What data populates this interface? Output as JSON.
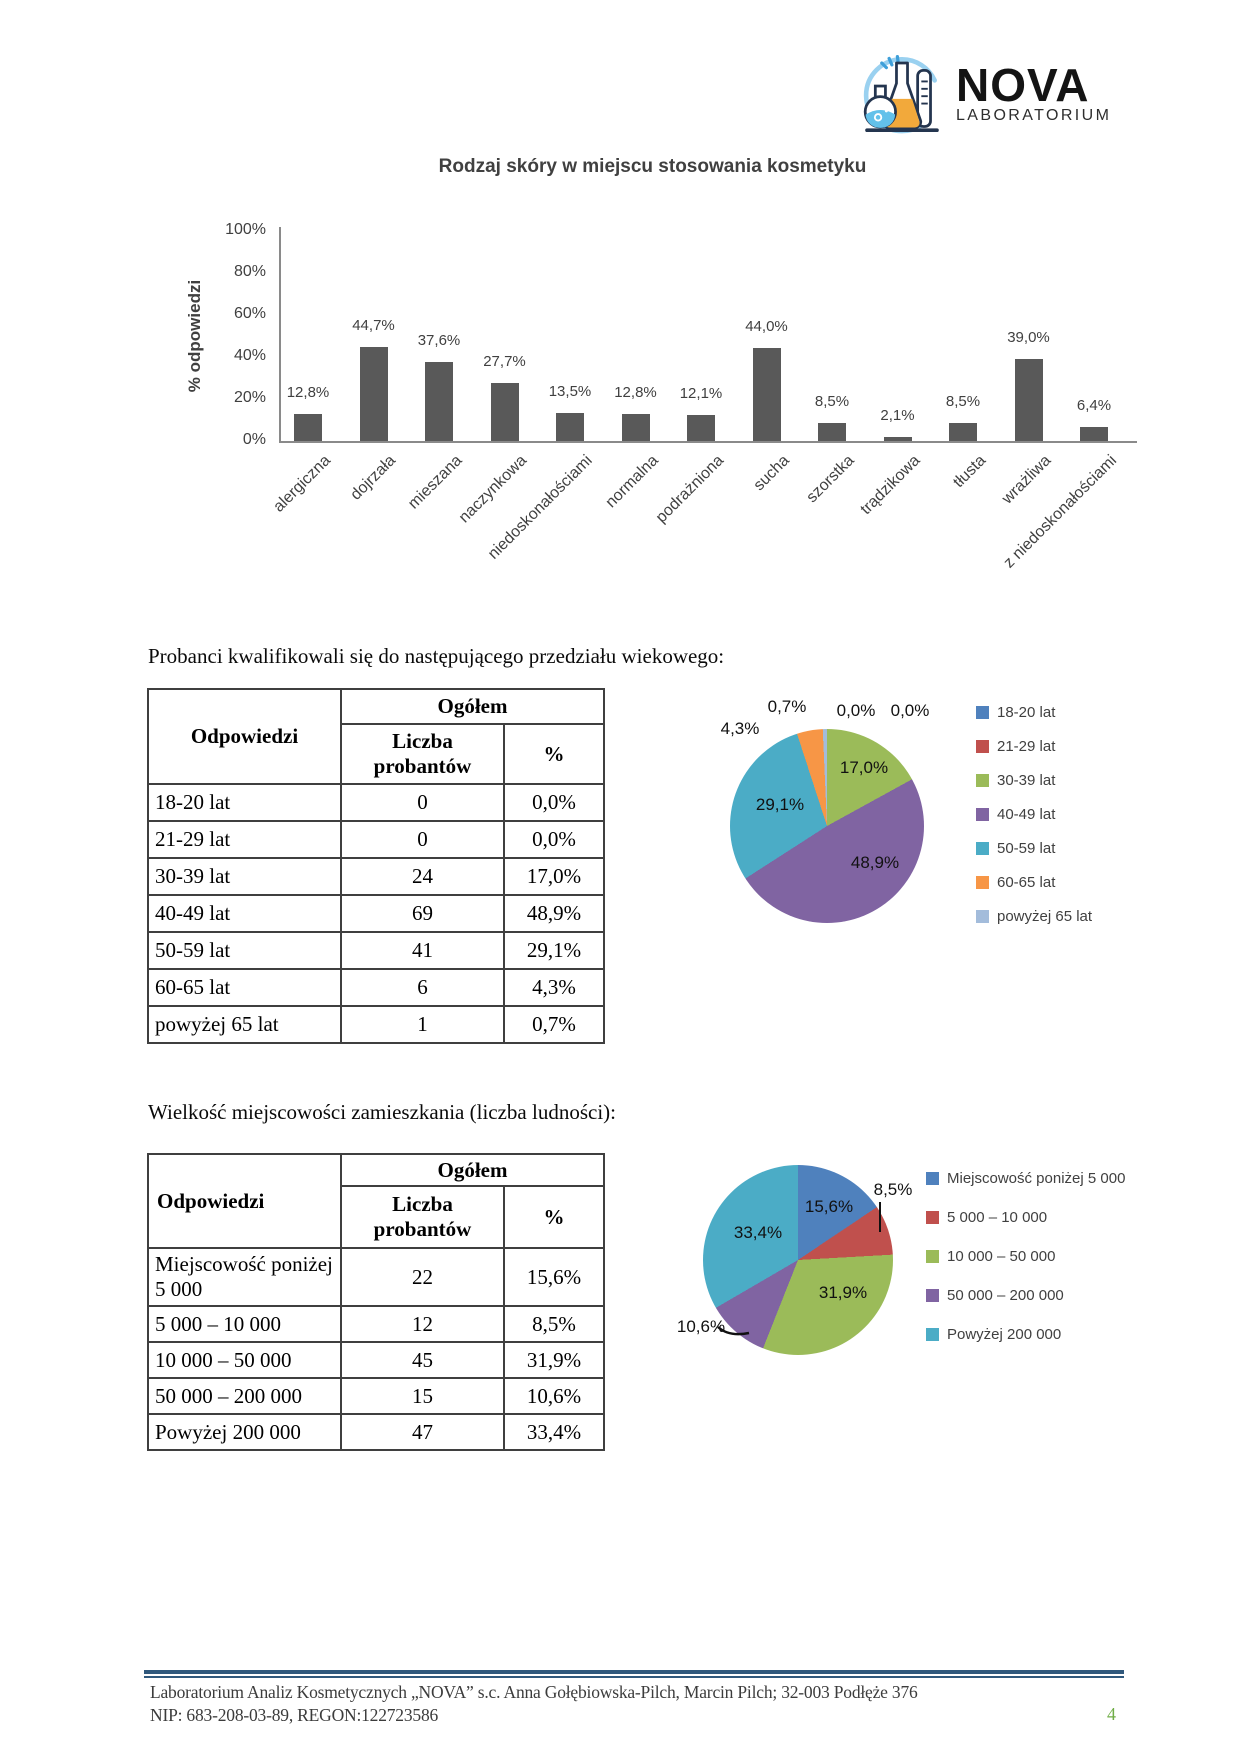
{
  "page": {
    "number": "4"
  },
  "logo": {
    "brand": "NOVA",
    "subtitle": "LABORATORIUM"
  },
  "chart_data": [
    {
      "id": "skin-type-bar",
      "type": "bar",
      "title": "Rodzaj skóry w miejscu stosowania kosmetyku",
      "xlabel": "",
      "ylabel": "% odpowiedzi",
      "ylim": [
        0,
        100
      ],
      "grid": false,
      "y_tick_labels": [
        "0%",
        "20%",
        "40%",
        "60%",
        "80%",
        "100%"
      ],
      "categories": [
        "alergiczna",
        "dojrzała",
        "mieszana",
        "naczynkowa",
        "niedoskonałościami",
        "normalna",
        "podrażniona",
        "sucha",
        "szorstka",
        "trądzikowa",
        "tłusta",
        "wrażliwa",
        "z niedoskonałościami"
      ],
      "values": [
        12.8,
        44.7,
        37.6,
        27.7,
        13.5,
        12.8,
        12.1,
        44.0,
        8.5,
        2.1,
        8.5,
        39.0,
        6.4
      ],
      "value_labels": [
        "12,8%",
        "44,7%",
        "37,6%",
        "27,7%",
        "13,5%",
        "12,8%",
        "12,1%",
        "44,0%",
        "8,5%",
        "2,1%",
        "8,5%",
        "39,0%",
        "6,4%"
      ],
      "bar_color": "#595959"
    },
    {
      "id": "age-pie",
      "type": "pie",
      "legend_position": "right",
      "labels": [
        "18-20 lat",
        "21-29 lat",
        "30-39 lat",
        "40-49 lat",
        "50-59 lat",
        "60-65 lat",
        "powyżej 65 lat"
      ],
      "values": [
        0.0,
        0.0,
        17.0,
        48.9,
        29.1,
        4.3,
        0.7
      ],
      "value_labels": [
        "0,0%",
        "0,0%",
        "17,0%",
        "48,9%",
        "29,1%",
        "4,3%",
        "0,7%"
      ],
      "colors": [
        "#4F81BD",
        "#C0504D",
        "#9BBB59",
        "#8064A2",
        "#4BACC6",
        "#F79646",
        "#A3BCDB"
      ]
    },
    {
      "id": "city-size-pie",
      "type": "pie",
      "legend_position": "right",
      "labels": [
        "Miejscowość poniżej 5 000",
        "5 000 – 10 000",
        "10 000 – 50 000",
        "50 000 – 200 000",
        "Powyżej 200 000"
      ],
      "values": [
        15.6,
        8.5,
        31.9,
        10.6,
        33.4
      ],
      "value_labels": [
        "15,6%",
        "8,5%",
        "31,9%",
        "10,6%",
        "33,4%"
      ],
      "colors": [
        "#4F81BD",
        "#C0504D",
        "#9BBB59",
        "#8064A2",
        "#4BACC6"
      ]
    }
  ],
  "sections": {
    "age": {
      "intro": "Probanci kwalifikowali się do następującego przedziału wiekowego:",
      "table": {
        "corner_header": "Odpowiedzi",
        "group_header": "Ogółem",
        "sub_headers": [
          "Liczba probantów",
          "%"
        ],
        "rows": [
          [
            "18-20 lat",
            "0",
            "0,0%"
          ],
          [
            "21-29 lat",
            "0",
            "0,0%"
          ],
          [
            "30-39 lat",
            "24",
            "17,0%"
          ],
          [
            "40-49 lat",
            "69",
            "48,9%"
          ],
          [
            "50-59 lat",
            "41",
            "29,1%"
          ],
          [
            "60-65 lat",
            "6",
            "4,3%"
          ],
          [
            "powyżej 65 lat",
            "1",
            "0,7%"
          ]
        ]
      }
    },
    "city": {
      "intro": "Wielkość miejscowości zamieszkania (liczba ludności):",
      "table": {
        "corner_header": "Odpowiedzi",
        "group_header": "Ogółem",
        "sub_headers": [
          "Liczba probantów",
          "%"
        ],
        "rows": [
          [
            "Miejscowość poniżej 5 000",
            "22",
            "15,6%"
          ],
          [
            "5 000 – 10 000",
            "12",
            "8,5%"
          ],
          [
            "10 000 – 50 000",
            "45",
            "31,9%"
          ],
          [
            "50 000 – 200 000",
            "15",
            "10,6%"
          ],
          [
            "Powyżej 200 000",
            "47",
            "33,4%"
          ]
        ]
      }
    }
  },
  "footer": {
    "line1": "Laboratorium Analiz Kosmetycznych „NOVA” s.c. Anna Gołębiowska-Pilch, Marcin Pilch; 32-003 Podłęże 376",
    "line2": "NIP: 683-208-03-89, REGON:122723586",
    "page_number": "4"
  }
}
